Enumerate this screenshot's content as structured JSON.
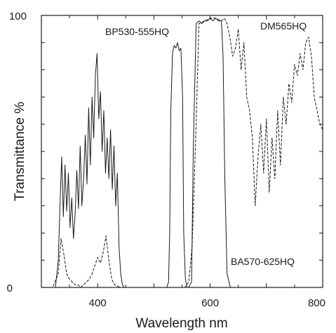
{
  "chart_data": {
    "type": "line",
    "title": "",
    "xlabel": "Wavelength nm",
    "ylabel": "Transmittance %",
    "xlim": [
      300,
      800
    ],
    "ylim": [
      0,
      100
    ],
    "x_ticks": [
      400,
      600,
      800
    ],
    "x_tick_labels": [
      "400",
      "600",
      "800"
    ],
    "y_tick_labels": [
      "0",
      "100"
    ],
    "grid": false,
    "legend": "none",
    "annotations": {
      "bp": "BP530-555HQ",
      "dm": "DM565HQ",
      "ba": "BA570-625HQ"
    },
    "series": [
      {
        "name": "BP530-555HQ",
        "style": "solid",
        "x": [
          300,
          325,
          330,
          333,
          336,
          339,
          342,
          345,
          348,
          351,
          354,
          357,
          360,
          363,
          366,
          369,
          372,
          375,
          378,
          381,
          384,
          387,
          390,
          393,
          396,
          399,
          402,
          405,
          408,
          411,
          414,
          417,
          420,
          423,
          426,
          429,
          432,
          435,
          438,
          441,
          444,
          447,
          450,
          520,
          523,
          526,
          528,
          530,
          533,
          536,
          539,
          542,
          545,
          548,
          551,
          553,
          556,
          559,
          562,
          800
        ],
        "y": [
          0,
          0,
          10,
          30,
          48,
          26,
          45,
          28,
          42,
          22,
          33,
          18,
          27,
          43,
          29,
          52,
          30,
          40,
          56,
          38,
          66,
          45,
          70,
          55,
          78,
          86,
          62,
          72,
          50,
          65,
          42,
          55,
          40,
          58,
          36,
          52,
          30,
          42,
          15,
          5,
          1,
          0,
          0,
          0,
          0,
          2,
          20,
          65,
          86,
          89,
          88,
          90,
          87,
          88,
          70,
          20,
          3,
          0,
          0,
          0
        ]
      },
      {
        "name": "BA570-625HQ",
        "style": "solid",
        "x": [
          300,
          550,
          562,
          567,
          570,
          575,
          580,
          585,
          590,
          595,
          600,
          605,
          610,
          615,
          620,
          623,
          626,
          630,
          636,
          800
        ],
        "y": [
          0,
          0,
          0,
          2,
          50,
          97,
          98,
          97,
          98,
          98,
          99,
          98,
          99,
          98,
          98,
          85,
          40,
          5,
          0,
          0
        ]
      },
      {
        "name": "DM565HQ",
        "style": "dashed",
        "x": [
          300,
          320,
          330,
          335,
          340,
          345,
          350,
          355,
          360,
          365,
          370,
          375,
          380,
          385,
          390,
          395,
          400,
          405,
          410,
          415,
          420,
          425,
          430,
          440,
          450,
          500,
          530,
          545,
          555,
          562,
          568,
          575,
          580,
          590,
          600,
          610,
          620,
          625,
          630,
          635,
          640,
          645,
          650,
          655,
          660,
          665,
          670,
          675,
          680,
          685,
          690,
          695,
          700,
          705,
          710,
          715,
          720,
          725,
          730,
          735,
          740,
          745,
          750,
          755,
          760,
          765,
          770,
          775,
          780,
          785,
          790,
          795,
          800
        ],
        "y": [
          0,
          0,
          5,
          18,
          12,
          5,
          3,
          2,
          1,
          1,
          0,
          1,
          2,
          3,
          5,
          8,
          11,
          9,
          13,
          19,
          10,
          3,
          1,
          0,
          0,
          0,
          0,
          0,
          0,
          2,
          15,
          60,
          97,
          98,
          99,
          99,
          98,
          99,
          97,
          92,
          85,
          88,
          95,
          80,
          90,
          70,
          65,
          55,
          30,
          48,
          60,
          42,
          62,
          35,
          55,
          40,
          65,
          45,
          70,
          60,
          75,
          68,
          82,
          78,
          86,
          80,
          90,
          92,
          85,
          70,
          65,
          60,
          58
        ]
      }
    ]
  }
}
